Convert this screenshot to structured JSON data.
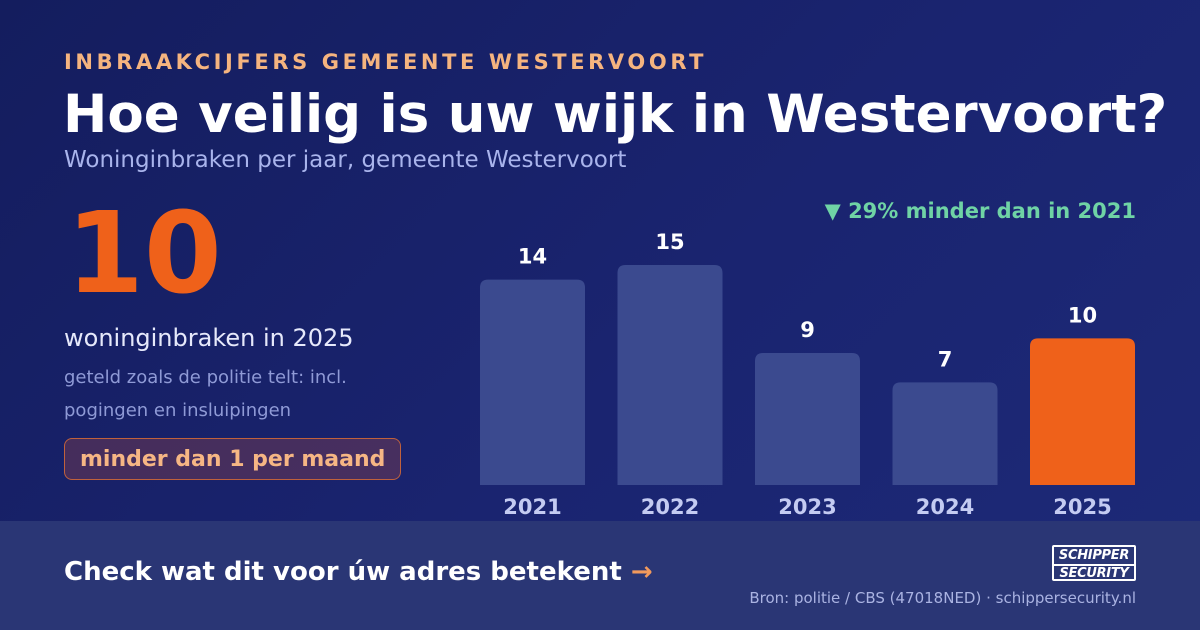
{
  "header": {
    "eyebrow": "INBRAAKCIJFERS GEMEENTE WESTERVOORT",
    "title": "Hoe veilig is uw wijk in Westervoort?",
    "subtitle": "Woninginbraken per jaar, gemeente Westervoort"
  },
  "highlight": {
    "value": "10",
    "label": "woninginbraken in 2025",
    "note": "geteld zoals de politie telt: incl. pogingen en insluipingen",
    "badge": "minder dan 1 per maand"
  },
  "delta": "▼ 29% minder dan in 2021",
  "footer": {
    "cta": "Check wat dit voor úw adres betekent",
    "cta_arrow": "→",
    "logo_line1": "SCHIPPER",
    "logo_line2": "SECURITY",
    "source": "Bron: politie / CBS (47018NED) · schippersecurity.nl"
  },
  "colors": {
    "background": "#1a2470",
    "bar": "#3b4a8f",
    "highlight_bar": "#ef611a",
    "delta": "#6fd3a5",
    "accent": "#f5b47f"
  },
  "chart_data": {
    "type": "bar",
    "categories": [
      "2021",
      "2022",
      "2023",
      "2024",
      "2025"
    ],
    "values": [
      14,
      15,
      9,
      7,
      10
    ],
    "highlight_index": 4,
    "ylim": [
      0,
      15
    ],
    "grid": false,
    "legend": "none",
    "data_labels": true
  }
}
